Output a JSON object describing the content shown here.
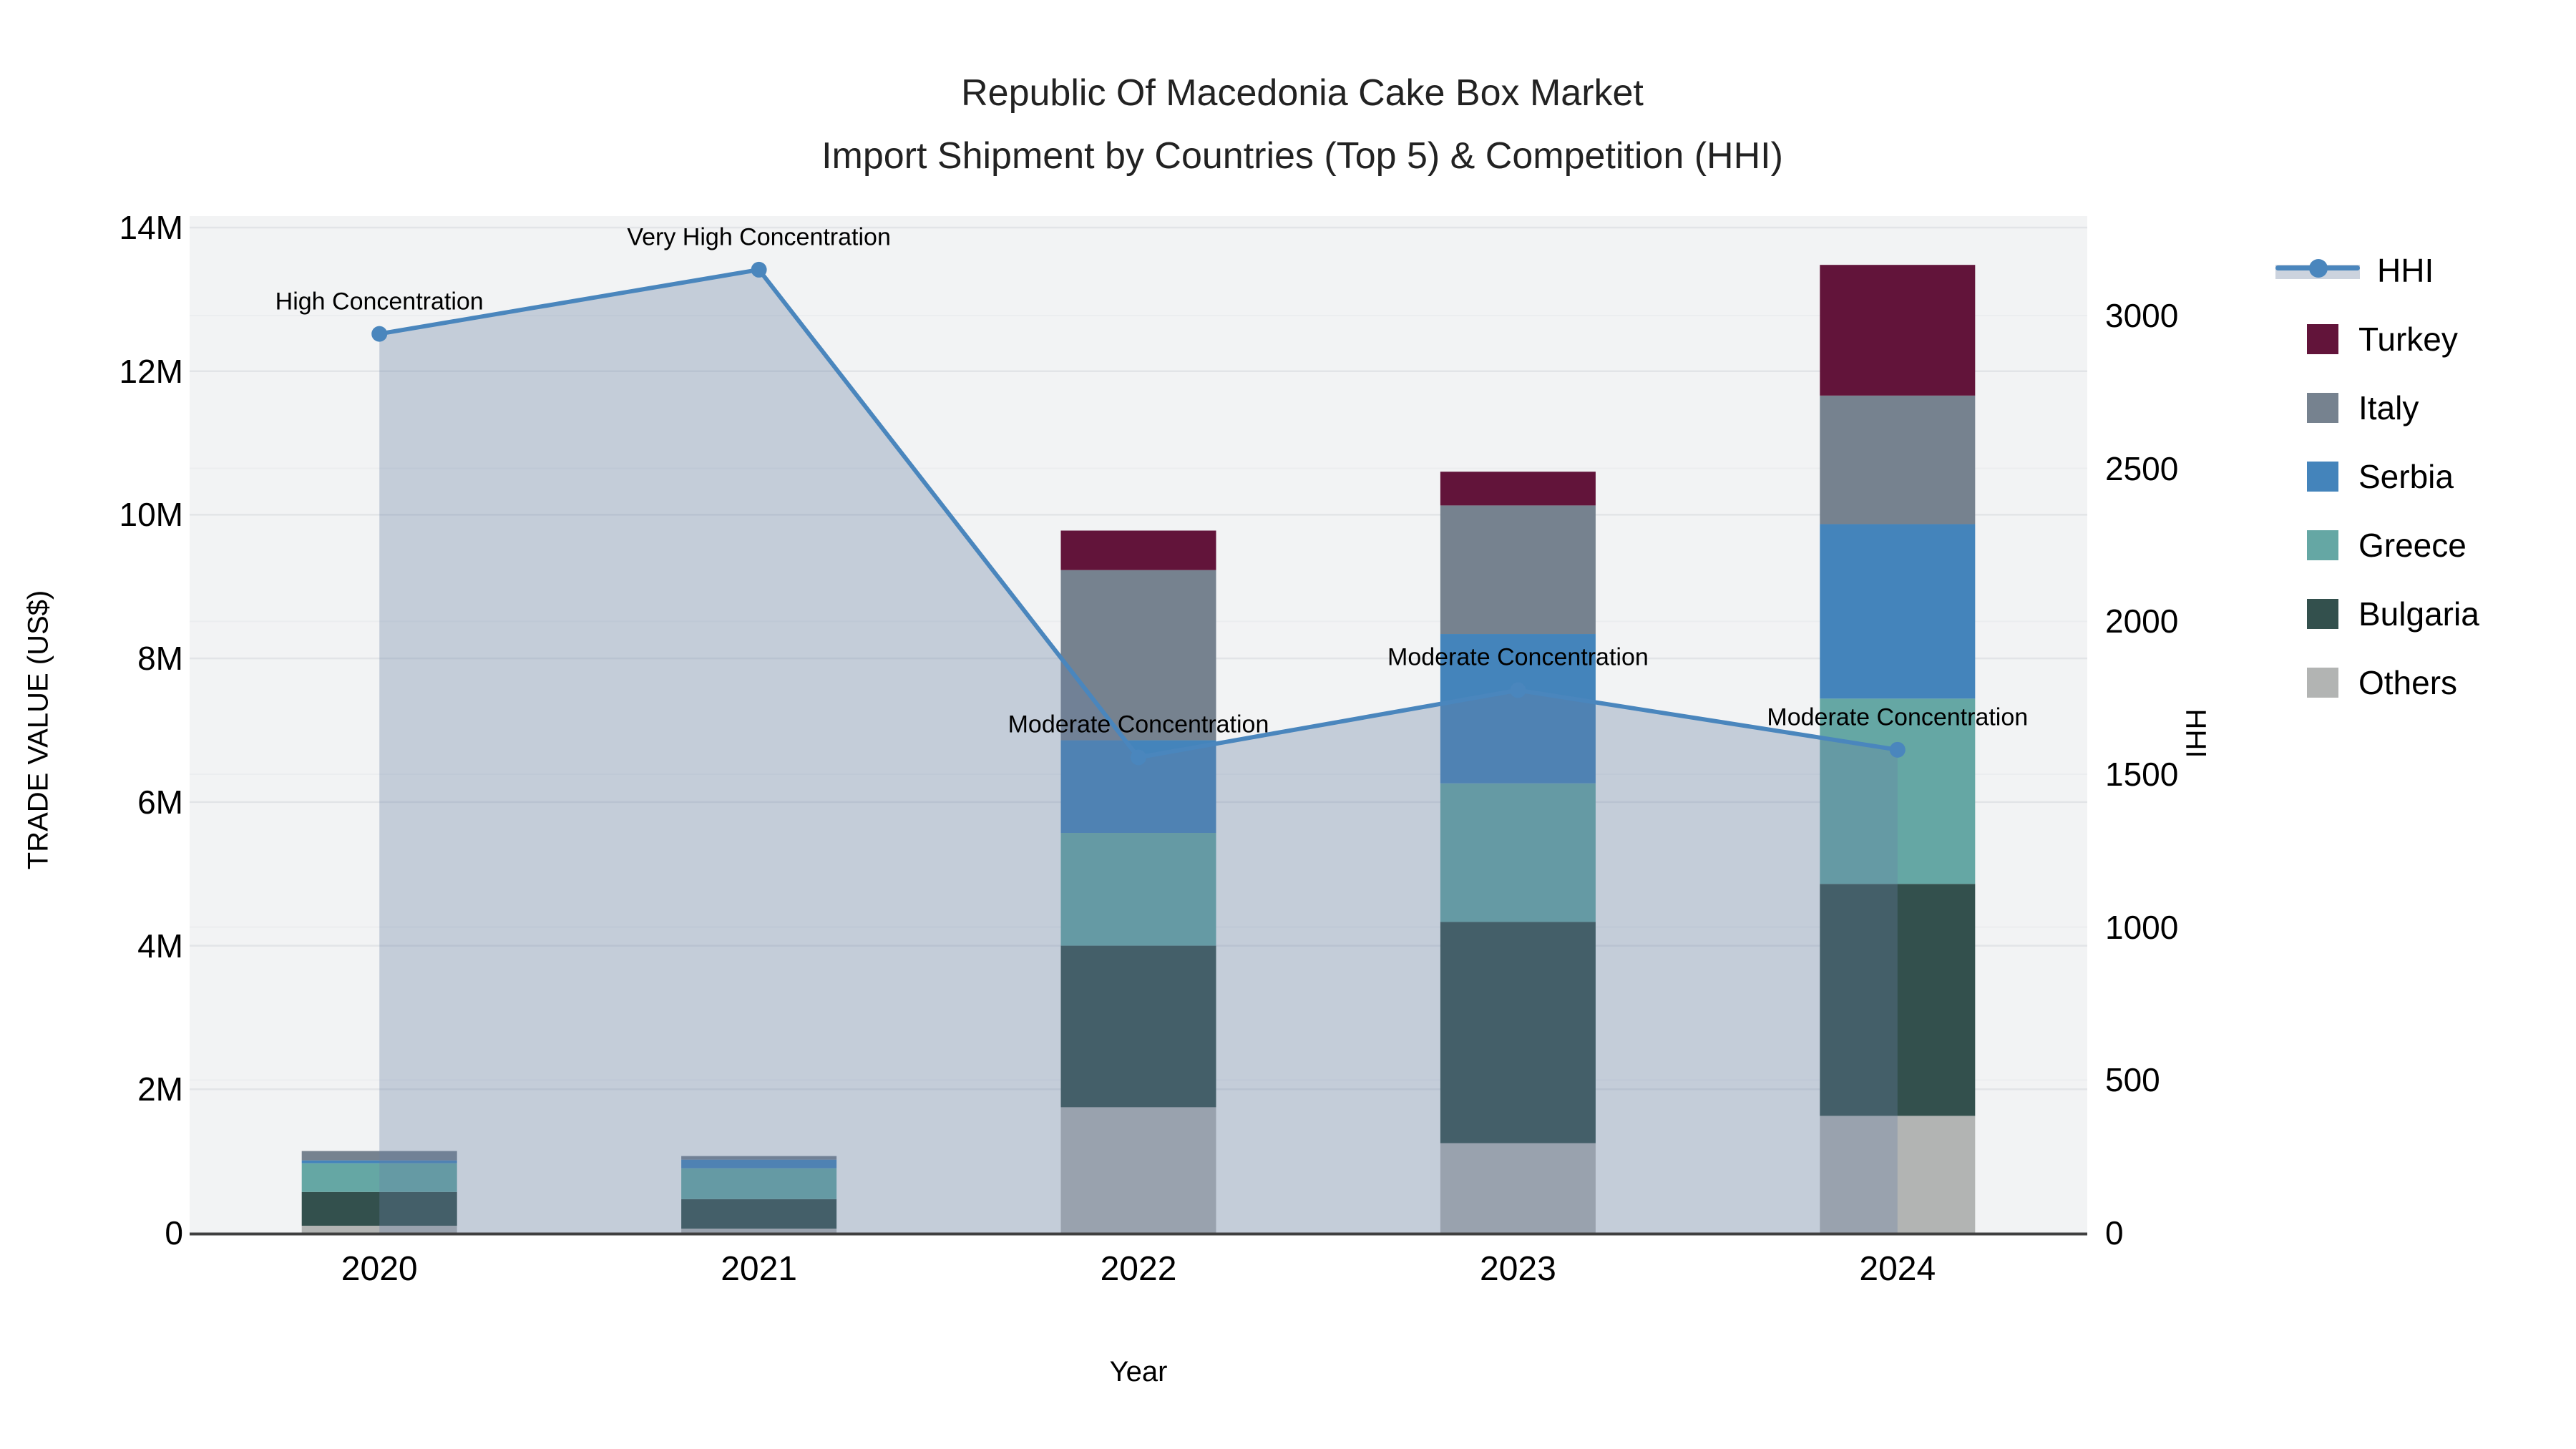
{
  "title": {
    "line1": "Republic Of Macedonia Cake Box Market",
    "line2": "Import Shipment by Countries (Top 5) & Competition (HHI)"
  },
  "axes": {
    "x_title": "Year",
    "y_left_title": "TRADE VALUE (US$)",
    "y_right_title": "HHI",
    "y_left_ticks": [
      "0",
      "2M",
      "4M",
      "6M",
      "8M",
      "10M",
      "12M",
      "14M"
    ],
    "y_left_tick_values_musd": [
      0,
      2,
      4,
      6,
      8,
      10,
      12,
      14
    ],
    "y_right_ticks": [
      "0",
      "500",
      "1000",
      "1500",
      "2000",
      "2500",
      "3000"
    ],
    "y_right_tick_values": [
      0,
      500,
      1000,
      1500,
      2000,
      2500,
      3000
    ]
  },
  "legend": {
    "items": [
      {
        "label": "HHI",
        "type": "line"
      },
      {
        "label": "Turkey",
        "type": "swatch"
      },
      {
        "label": "Italy",
        "type": "swatch"
      },
      {
        "label": "Serbia",
        "type": "swatch"
      },
      {
        "label": "Greece",
        "type": "swatch"
      },
      {
        "label": "Bulgaria",
        "type": "swatch"
      },
      {
        "label": "Others",
        "type": "swatch"
      }
    ]
  },
  "colors": {
    "Turkey": "#62143a",
    "Italy": "#76828f",
    "Serbia": "#4484bb",
    "Greece": "#65a7a4",
    "Bulgaria": "#33504d",
    "Others": "#b2b4b3",
    "hhi_line": "#4a86bd",
    "hhi_fill": "rgba(102,128,164,0.33)",
    "plot_bg": "#f2f3f4",
    "grid_major": "#e2e4e7",
    "grid_minor": "#ebedef",
    "axis_line": "#3f3f3f"
  },
  "chart_data": {
    "type": "bar+line combo (stacked bars, secondary-axis line)",
    "categories": [
      "2020",
      "2021",
      "2022",
      "2023",
      "2024"
    ],
    "stack_order_bottom_to_top": [
      "Others",
      "Bulgaria",
      "Greece",
      "Serbia",
      "Italy",
      "Turkey"
    ],
    "series": [
      {
        "name": "Others",
        "values_musd": [
          0.1,
          0.06,
          1.75,
          1.25,
          1.63
        ]
      },
      {
        "name": "Bulgaria",
        "values_musd": [
          0.47,
          0.41,
          2.25,
          3.08,
          3.23
        ]
      },
      {
        "name": "Greece",
        "values_musd": [
          0.4,
          0.43,
          1.57,
          1.93,
          2.58
        ]
      },
      {
        "name": "Serbia",
        "values_musd": [
          0.04,
          0.12,
          1.29,
          2.08,
          2.43
        ]
      },
      {
        "name": "Italy",
        "values_musd": [
          0.13,
          0.05,
          2.37,
          1.79,
          1.79
        ]
      },
      {
        "name": "Turkey",
        "values_musd": [
          0.0,
          0.0,
          0.55,
          0.47,
          1.82
        ]
      }
    ],
    "bar_totals_musd": [
      1.14,
      1.07,
      9.78,
      10.6,
      13.48
    ],
    "line_series": {
      "name": "HHI",
      "axis": "right",
      "values": [
        2940,
        3150,
        1555,
        1775,
        1580
      ],
      "has_area_fill": true
    },
    "annotations": [
      {
        "year": "2020",
        "text": "High Concentration"
      },
      {
        "year": "2021",
        "text": "Very High Concentration"
      },
      {
        "year": "2022",
        "text": "Moderate Concentration"
      },
      {
        "year": "2023",
        "text": "Moderate Concentration"
      },
      {
        "year": "2024",
        "text": "Moderate Concentration"
      }
    ],
    "title": "Republic Of Macedonia Cake Box Market — Import Shipment by Countries (Top 5) & Competition (HHI)",
    "xlabel": "Year",
    "ylabel_left": "TRADE VALUE (US$)",
    "ylabel_right": "HHI",
    "y_left_range_musd": [
      0,
      14.2
    ],
    "y_right_range": [
      0,
      3325
    ],
    "grid": true,
    "legend_position": "right"
  }
}
